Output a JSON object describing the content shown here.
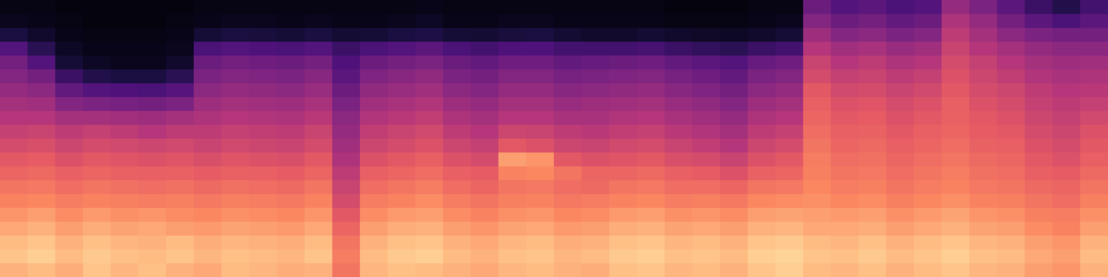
{
  "chart_data": {
    "type": "heatmap",
    "color": "magma",
    "tick_labels": false,
    "zlim": [
      0,
      100
    ],
    "cells": [
      [
        84,
        86,
        83,
        88,
        85,
        87,
        84,
        82,
        86,
        85,
        83,
        84,
        70,
        85,
        87,
        86,
        84,
        82,
        85,
        86,
        84,
        83,
        87,
        88,
        85,
        86,
        84,
        88,
        90,
        86,
        85,
        87,
        84,
        86,
        88,
        85,
        84,
        80,
        78,
        84
      ],
      [
        88,
        90,
        86,
        89,
        87,
        86,
        88,
        85,
        87,
        86,
        85,
        88,
        72,
        86,
        89,
        90,
        86,
        84,
        87,
        88,
        85,
        86,
        89,
        90,
        87,
        88,
        86,
        90,
        91,
        88,
        87,
        89,
        86,
        88,
        90,
        87,
        86,
        82,
        80,
        86
      ],
      [
        86,
        88,
        84,
        87,
        85,
        84,
        86,
        83,
        85,
        84,
        83,
        86,
        70,
        84,
        87,
        88,
        84,
        82,
        85,
        86,
        83,
        84,
        87,
        88,
        85,
        86,
        84,
        88,
        89,
        86,
        85,
        87,
        84,
        86,
        88,
        85,
        84,
        80,
        78,
        84
      ],
      [
        82,
        84,
        80,
        83,
        81,
        82,
        80,
        79,
        81,
        80,
        79,
        82,
        66,
        80,
        83,
        84,
        80,
        78,
        81,
        82,
        79,
        80,
        83,
        84,
        81,
        82,
        80,
        84,
        85,
        82,
        82,
        83,
        80,
        82,
        84,
        81,
        80,
        76,
        74,
        80
      ],
      [
        78,
        80,
        76,
        79,
        77,
        78,
        76,
        75,
        77,
        76,
        75,
        78,
        62,
        76,
        79,
        80,
        76,
        74,
        77,
        78,
        75,
        76,
        79,
        80,
        77,
        78,
        76,
        80,
        81,
        80,
        79,
        80,
        77,
        79,
        81,
        78,
        77,
        73,
        72,
        77
      ],
      [
        74,
        75,
        72,
        74,
        73,
        72,
        73,
        71,
        73,
        72,
        71,
        74,
        58,
        72,
        74,
        76,
        72,
        70,
        73,
        74,
        71,
        72,
        74,
        75,
        72,
        73,
        71,
        75,
        76,
        77,
        75,
        76,
        73,
        75,
        77,
        74,
        73,
        70,
        68,
        73
      ],
      [
        70,
        71,
        68,
        70,
        69,
        68,
        69,
        67,
        69,
        68,
        67,
        70,
        55,
        68,
        70,
        72,
        68,
        66,
        70,
        71,
        68,
        67,
        70,
        71,
        68,
        68,
        66,
        70,
        71,
        75,
        72,
        73,
        70,
        72,
        74,
        71,
        70,
        67,
        66,
        70
      ],
      [
        66,
        67,
        64,
        66,
        65,
        64,
        65,
        63,
        65,
        64,
        63,
        66,
        52,
        64,
        66,
        68,
        64,
        63,
        74,
        75,
        70,
        66,
        66,
        67,
        64,
        63,
        60,
        65,
        66,
        73,
        70,
        71,
        68,
        70,
        72,
        69,
        68,
        64,
        63,
        67
      ],
      [
        62,
        63,
        60,
        62,
        61,
        60,
        61,
        59,
        61,
        60,
        59,
        62,
        48,
        60,
        62,
        64,
        60,
        58,
        80,
        78,
        62,
        60,
        61,
        62,
        59,
        58,
        55,
        60,
        62,
        72,
        68,
        69,
        66,
        68,
        70,
        67,
        66,
        62,
        60,
        64
      ],
      [
        58,
        59,
        56,
        58,
        57,
        56,
        57,
        55,
        57,
        56,
        55,
        58,
        45,
        56,
        58,
        60,
        56,
        54,
        62,
        60,
        56,
        55,
        57,
        58,
        55,
        53,
        50,
        56,
        58,
        70,
        66,
        67,
        64,
        66,
        68,
        65,
        64,
        60,
        58,
        62
      ],
      [
        54,
        55,
        52,
        54,
        52,
        50,
        52,
        52,
        54,
        53,
        52,
        55,
        42,
        53,
        55,
        57,
        52,
        50,
        56,
        55,
        52,
        51,
        53,
        54,
        51,
        49,
        46,
        52,
        54,
        68,
        64,
        65,
        62,
        64,
        66,
        63,
        62,
        58,
        56,
        60
      ],
      [
        50,
        50,
        46,
        46,
        45,
        44,
        46,
        48,
        50,
        49,
        48,
        51,
        40,
        49,
        51,
        53,
        48,
        46,
        50,
        50,
        47,
        47,
        49,
        50,
        47,
        45,
        42,
        48,
        50,
        66,
        62,
        63,
        60,
        62,
        65,
        62,
        60,
        56,
        54,
        57
      ],
      [
        46,
        45,
        38,
        36,
        35,
        34,
        36,
        44,
        46,
        45,
        44,
        47,
        36,
        45,
        47,
        49,
        44,
        42,
        46,
        46,
        43,
        44,
        45,
        46,
        43,
        41,
        38,
        44,
        46,
        64,
        60,
        61,
        58,
        60,
        64,
        60,
        58,
        54,
        52,
        54
      ],
      [
        42,
        40,
        30,
        26,
        25,
        24,
        27,
        40,
        42,
        41,
        40,
        43,
        32,
        41,
        43,
        45,
        40,
        38,
        42,
        42,
        39,
        40,
        41,
        42,
        39,
        37,
        34,
        40,
        42,
        62,
        57,
        58,
        55,
        57,
        62,
        58,
        56,
        52,
        50,
        51
      ],
      [
        38,
        34,
        20,
        14,
        12,
        12,
        16,
        36,
        38,
        37,
        36,
        39,
        28,
        37,
        39,
        41,
        36,
        34,
        38,
        38,
        35,
        36,
        37,
        38,
        35,
        33,
        30,
        36,
        38,
        58,
        54,
        55,
        52,
        54,
        60,
        56,
        53,
        49,
        47,
        48
      ],
      [
        34,
        26,
        10,
        6,
        5,
        5,
        8,
        32,
        34,
        33,
        32,
        34,
        25,
        32,
        34,
        36,
        32,
        30,
        33,
        33,
        30,
        31,
        32,
        33,
        30,
        28,
        26,
        31,
        33,
        55,
        50,
        52,
        48,
        50,
        58,
        54,
        50,
        46,
        44,
        45
      ],
      [
        26,
        16,
        6,
        4,
        4,
        4,
        5,
        24,
        26,
        25,
        24,
        26,
        20,
        24,
        26,
        28,
        24,
        22,
        25,
        25,
        22,
        22,
        22,
        23,
        20,
        18,
        16,
        20,
        22,
        50,
        45,
        47,
        43,
        45,
        55,
        50,
        46,
        42,
        40,
        40
      ],
      [
        12,
        8,
        4,
        3,
        3,
        3,
        4,
        10,
        12,
        11,
        10,
        12,
        9,
        10,
        12,
        13,
        10,
        9,
        11,
        12,
        9,
        8,
        8,
        9,
        8,
        7,
        6,
        8,
        10,
        44,
        38,
        40,
        36,
        38,
        52,
        46,
        40,
        36,
        34,
        34
      ],
      [
        5,
        4,
        3,
        2,
        2,
        2,
        3,
        4,
        5,
        5,
        4,
        5,
        4,
        4,
        5,
        6,
        4,
        4,
        5,
        5,
        4,
        4,
        4,
        4,
        3,
        3,
        3,
        4,
        5,
        38,
        32,
        34,
        30,
        32,
        48,
        42,
        34,
        28,
        24,
        28
      ],
      [
        3,
        3,
        2,
        2,
        2,
        2,
        2,
        3,
        3,
        3,
        3,
        3,
        3,
        3,
        3,
        4,
        3,
        3,
        3,
        3,
        3,
        3,
        3,
        3,
        2,
        2,
        2,
        3,
        3,
        32,
        26,
        28,
        24,
        26,
        42,
        36,
        28,
        20,
        14,
        22
      ]
    ]
  }
}
